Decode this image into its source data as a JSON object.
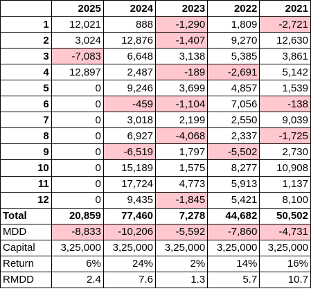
{
  "colors": {
    "negative_fill": "#ffc7ce"
  },
  "header": [
    "",
    "2025",
    "2024",
    "2023",
    "2022",
    "2021"
  ],
  "months": [
    {
      "label": "1",
      "values": [
        "12,021",
        "888",
        "-1,290",
        "1,809",
        "-2,721"
      ],
      "neg": [
        false,
        false,
        true,
        false,
        true
      ]
    },
    {
      "label": "2",
      "values": [
        "3,024",
        "12,876",
        "-1,407",
        "9,270",
        "12,630"
      ],
      "neg": [
        false,
        false,
        true,
        false,
        false
      ]
    },
    {
      "label": "3",
      "values": [
        "-7,083",
        "6,648",
        "3,138",
        "5,385",
        "3,861"
      ],
      "neg": [
        true,
        false,
        false,
        false,
        false
      ]
    },
    {
      "label": "4",
      "values": [
        "12,897",
        "2,487",
        "-189",
        "-2,691",
        "5,142"
      ],
      "neg": [
        false,
        false,
        true,
        true,
        false
      ]
    },
    {
      "label": "5",
      "values": [
        "0",
        "9,246",
        "3,699",
        "4,857",
        "1,539"
      ],
      "neg": [
        false,
        false,
        false,
        false,
        false
      ]
    },
    {
      "label": "6",
      "values": [
        "0",
        "-459",
        "-1,104",
        "7,056",
        "-138"
      ],
      "neg": [
        false,
        true,
        true,
        false,
        true
      ]
    },
    {
      "label": "7",
      "values": [
        "0",
        "3,018",
        "2,199",
        "2,550",
        "9,039"
      ],
      "neg": [
        false,
        false,
        false,
        false,
        false
      ]
    },
    {
      "label": "8",
      "values": [
        "0",
        "6,927",
        "-4,068",
        "2,337",
        "-1,725"
      ],
      "neg": [
        false,
        false,
        true,
        false,
        true
      ]
    },
    {
      "label": "9",
      "values": [
        "0",
        "-6,519",
        "1,797",
        "-5,502",
        "2,730"
      ],
      "neg": [
        false,
        true,
        false,
        true,
        false
      ]
    },
    {
      "label": "10",
      "values": [
        "0",
        "15,189",
        "1,575",
        "8,277",
        "10,908"
      ],
      "neg": [
        false,
        false,
        false,
        false,
        false
      ]
    },
    {
      "label": "11",
      "values": [
        "0",
        "17,724",
        "4,773",
        "5,913",
        "1,137"
      ],
      "neg": [
        false,
        false,
        false,
        false,
        false
      ]
    },
    {
      "label": "12",
      "values": [
        "0",
        "9,435",
        "-1,845",
        "5,421",
        "8,100"
      ],
      "neg": [
        false,
        false,
        true,
        false,
        false
      ]
    }
  ],
  "summary": [
    {
      "label": "Total",
      "values": [
        "20,859",
        "77,460",
        "7,278",
        "44,682",
        "50,502"
      ],
      "neg": [
        false,
        false,
        false,
        false,
        false
      ],
      "bold": true
    },
    {
      "label": "MDD",
      "values": [
        "-8,833",
        "-10,206",
        "-5,592",
        "-7,860",
        "-4,731"
      ],
      "neg": [
        true,
        true,
        true,
        true,
        true
      ],
      "bold": false
    },
    {
      "label": "Capital",
      "values": [
        "3,25,000",
        "3,25,000",
        "3,25,000",
        "3,25,000",
        "3,25,000"
      ],
      "neg": [
        false,
        false,
        false,
        false,
        false
      ],
      "bold": false
    },
    {
      "label": "Return",
      "values": [
        "6%",
        "24%",
        "2%",
        "14%",
        "16%"
      ],
      "neg": [
        false,
        false,
        false,
        false,
        false
      ],
      "bold": false
    },
    {
      "label": "RMDD",
      "values": [
        "2.4",
        "7.6",
        "1.3",
        "5.7",
        "10.7"
      ],
      "neg": [
        false,
        false,
        false,
        false,
        false
      ],
      "bold": false
    }
  ]
}
